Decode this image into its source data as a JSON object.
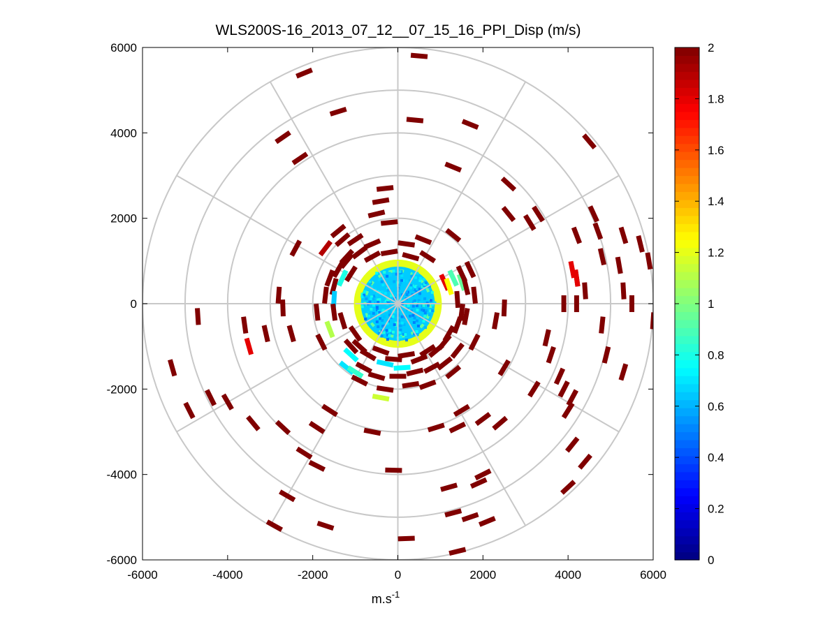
{
  "chart_data": {
    "type": "scatter",
    "subtype": "polar-ppi-scan",
    "title": "WLS200S-16_2013_07_12__07_15_16_PPI_Disp (m/s)",
    "xlabel": "m.s",
    "xlabel_superscript": "-1",
    "ylabel": "",
    "xlim": [
      -6000,
      6000
    ],
    "ylim": [
      -6000,
      6000
    ],
    "x_ticks": [
      -6000,
      -4000,
      -2000,
      0,
      2000,
      4000,
      6000
    ],
    "y_ticks": [
      -6000,
      -4000,
      -2000,
      0,
      2000,
      4000,
      6000
    ],
    "x_tick_labels": [
      "-6000",
      "-4000",
      "-2000",
      "0",
      "2000",
      "4000",
      "6000"
    ],
    "y_tick_labels": [
      "-6000",
      "-4000",
      "-2000",
      "0",
      "2000",
      "4000",
      "6000"
    ],
    "polar_grid": {
      "ring_radii": [
        1000,
        2000,
        3000,
        4000,
        5000,
        6000
      ],
      "spoke_angles_deg": [
        0,
        30,
        60,
        90,
        120,
        150,
        180,
        210,
        240,
        270,
        300,
        330
      ],
      "color": "#c8c8c8"
    },
    "colorbar": {
      "min": 0,
      "max": 2,
      "ticks": [
        0,
        0.2,
        0.4,
        0.6,
        0.8,
        1,
        1.2,
        1.4,
        1.6,
        1.8,
        2
      ],
      "tick_labels": [
        "0",
        "0.2",
        "0.4",
        "0.6",
        "0.8",
        "1",
        "1.2",
        "1.4",
        "1.6",
        "1.8",
        "2"
      ],
      "colormap": "jet"
    },
    "central_disk": {
      "x": 0,
      "y": 0,
      "radius": 1000,
      "value_inner": 0.65,
      "value_rim": 1.2
    },
    "points": [
      [
        500,
        5800,
        2
      ],
      [
        -2200,
        5400,
        2
      ],
      [
        -1400,
        4500,
        2
      ],
      [
        400,
        4300,
        2
      ],
      [
        1700,
        4200,
        2
      ],
      [
        -2700,
        3900,
        2
      ],
      [
        4500,
        3800,
        2
      ],
      [
        -2300,
        3400,
        2
      ],
      [
        1300,
        3200,
        2
      ],
      [
        2600,
        2800,
        2
      ],
      [
        -300,
        2700,
        2
      ],
      [
        -400,
        2400,
        2
      ],
      [
        -500,
        2100,
        2
      ],
      [
        -200,
        1900,
        2
      ],
      [
        -1400,
        1700,
        2
      ],
      [
        -1300,
        1500,
        2
      ],
      [
        1300,
        1600,
        2
      ],
      [
        2600,
        2100,
        2
      ],
      [
        3300,
        2100,
        2
      ],
      [
        3100,
        1900,
        2
      ],
      [
        4600,
        2100,
        2
      ],
      [
        4700,
        1700,
        2
      ],
      [
        5300,
        1600,
        2
      ],
      [
        5700,
        1400,
        2
      ],
      [
        4200,
        1600,
        2
      ],
      [
        4800,
        1100,
        2
      ],
      [
        5200,
        900,
        2
      ],
      [
        5900,
        1000,
        2
      ],
      [
        4200,
        600,
        2
      ],
      [
        4400,
        300,
        2
      ],
      [
        5300,
        300,
        2
      ],
      [
        5500,
        0,
        2
      ],
      [
        6000,
        -400,
        2
      ],
      [
        3900,
        0,
        2
      ],
      [
        4200,
        0,
        2
      ],
      [
        4800,
        -500,
        2
      ],
      [
        4900,
        -1200,
        2
      ],
      [
        5300,
        -1600,
        2
      ],
      [
        3500,
        -800,
        2
      ],
      [
        3600,
        -1200,
        2
      ],
      [
        3800,
        -1700,
        2
      ],
      [
        3900,
        -2000,
        2
      ],
      [
        4000,
        -2500,
        2
      ],
      [
        4100,
        -2200,
        2
      ],
      [
        3200,
        -2000,
        2
      ],
      [
        2500,
        -1500,
        2
      ],
      [
        2300,
        -400,
        2
      ],
      [
        2500,
        -100,
        2
      ],
      [
        1600,
        -300,
        2
      ],
      [
        1800,
        -900,
        2
      ],
      [
        1300,
        -1600,
        2
      ],
      [
        1500,
        -2500,
        2
      ],
      [
        1400,
        -2900,
        2
      ],
      [
        2000,
        -2700,
        2
      ],
      [
        900,
        -2900,
        2
      ],
      [
        2400,
        -2800,
        2
      ],
      [
        4100,
        -3300,
        2
      ],
      [
        4400,
        -3700,
        2
      ],
      [
        4000,
        -4300,
        2
      ],
      [
        2000,
        -4000,
        2
      ],
      [
        1900,
        -4200,
        2
      ],
      [
        1200,
        -4300,
        2
      ],
      [
        1300,
        -4900,
        2
      ],
      [
        1700,
        -5000,
        2
      ],
      [
        2100,
        -5100,
        2
      ],
      [
        1400,
        -5800,
        2
      ],
      [
        200,
        -5500,
        2
      ],
      [
        -100,
        -3900,
        2
      ],
      [
        -600,
        -3000,
        2
      ],
      [
        -1600,
        -2500,
        2
      ],
      [
        -1900,
        -2900,
        2
      ],
      [
        -2700,
        -2900,
        2
      ],
      [
        -2200,
        -3500,
        2
      ],
      [
        -1900,
        -3800,
        2
      ],
      [
        -2600,
        -4500,
        2
      ],
      [
        -2900,
        -5200,
        2
      ],
      [
        -1700,
        -5200,
        2
      ],
      [
        -3400,
        -2800,
        2
      ],
      [
        -4400,
        -2200,
        2
      ],
      [
        -4000,
        -2300,
        2
      ],
      [
        -4900,
        -2500,
        2
      ],
      [
        -5300,
        -1500,
        2
      ],
      [
        -4700,
        -300,
        2
      ],
      [
        -3600,
        -500,
        2
      ],
      [
        -3100,
        -700,
        2
      ],
      [
        -2500,
        -700,
        2
      ],
      [
        -1800,
        -900,
        2
      ],
      [
        -2800,
        200,
        2
      ],
      [
        -2700,
        -100,
        2
      ],
      [
        -1900,
        -200,
        2
      ],
      [
        -2400,
        1300,
        2
      ],
      [
        -1200,
        1000,
        2
      ],
      [
        -1100,
        700,
        2
      ],
      [
        -1500,
        400,
        2
      ],
      [
        -3500,
        -1000,
        1.8
      ],
      [
        4200,
        600,
        1.8
      ],
      [
        4100,
        800,
        1.8
      ],
      [
        -1700,
        1300,
        1.9
      ],
      [
        1100,
        500,
        1.8
      ],
      [
        -1100,
        -1200,
        0.75
      ],
      [
        -1200,
        -1500,
        0.7
      ],
      [
        -1000,
        -1600,
        0.85
      ],
      [
        -300,
        -1400,
        0.7
      ],
      [
        100,
        -1500,
        0.75
      ],
      [
        -400,
        -2200,
        1.15
      ],
      [
        -1300,
        600,
        0.8
      ],
      [
        -1500,
        100,
        0.65
      ],
      [
        1300,
        600,
        0.9
      ],
      [
        1500,
        500,
        0.95
      ],
      [
        1200,
        400,
        1.25
      ],
      [
        -1600,
        -600,
        1.1
      ],
      [
        -1100,
        -1000,
        2
      ],
      [
        -900,
        -1000,
        2
      ],
      [
        -700,
        -1200,
        2
      ],
      [
        -400,
        -1100,
        2
      ],
      [
        -100,
        -1300,
        2
      ],
      [
        200,
        -1200,
        2
      ],
      [
        500,
        -1300,
        2
      ],
      [
        700,
        -1100,
        2
      ],
      [
        900,
        -1100,
        2
      ],
      [
        1100,
        -900,
        2
      ],
      [
        1200,
        -700,
        2
      ],
      [
        1400,
        -500,
        2
      ],
      [
        1500,
        -200,
        2
      ],
      [
        1400,
        100,
        2
      ],
      [
        1600,
        400,
        2
      ],
      [
        1500,
        700,
        2
      ],
      [
        1700,
        800,
        2
      ],
      [
        1800,
        200,
        2
      ],
      [
        700,
        1100,
        2
      ],
      [
        300,
        1100,
        2
      ],
      [
        -200,
        1200,
        2
      ],
      [
        -600,
        1100,
        2
      ],
      [
        -900,
        1200,
        2
      ],
      [
        -1200,
        1100,
        2
      ],
      [
        -1400,
        800,
        2
      ],
      [
        -1600,
        600,
        2
      ],
      [
        -1700,
        200,
        2
      ],
      [
        -1500,
        -200,
        2
      ],
      [
        -1300,
        -400,
        2
      ],
      [
        -1000,
        -700,
        2
      ],
      [
        -800,
        -1500,
        2
      ],
      [
        -500,
        -1700,
        2
      ],
      [
        0,
        -1700,
        2
      ],
      [
        400,
        -1600,
        2
      ],
      [
        800,
        -1500,
        2
      ],
      [
        1100,
        -1400,
        2
      ],
      [
        1400,
        -1100,
        2
      ],
      [
        -900,
        -1800,
        2
      ],
      [
        -300,
        -2000,
        2
      ],
      [
        300,
        -1900,
        2
      ],
      [
        700,
        -1900,
        2
      ],
      [
        -600,
        1400,
        2
      ],
      [
        200,
        1400,
        2
      ],
      [
        600,
        1500,
        2
      ],
      [
        -1000,
        1500,
        2
      ]
    ]
  }
}
